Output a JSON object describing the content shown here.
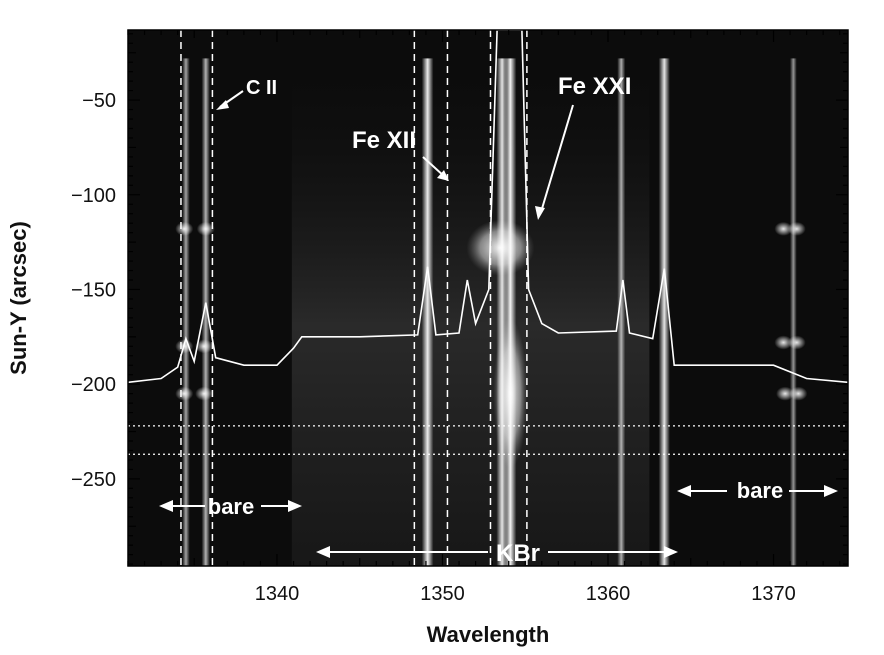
{
  "chart_data": {
    "type": "heatmap",
    "xlabel": "Wavelength",
    "ylabel": "Sun-Y (arcsec)",
    "xlim": [
      1331,
      1374.5
    ],
    "ylim": [
      -296,
      -13
    ],
    "x_ticks": [
      1340,
      1350,
      1360,
      1370
    ],
    "y_ticks": [
      -50,
      -100,
      -150,
      -200,
      -250
    ],
    "colormap": "grayscale",
    "dashed_vlines": [
      1334.2,
      1336.1,
      1348.3,
      1350.3,
      1352.9,
      1355.1
    ],
    "dotted_hlines": [
      -222,
      -237
    ],
    "emission_lines": [
      {
        "wavelength": 1334.5,
        "strength": 0.45
      },
      {
        "wavelength": 1335.7,
        "strength": 0.55
      },
      {
        "wavelength": 1349.1,
        "strength": 0.95
      },
      {
        "wavelength": 1353.6,
        "strength": 0.9
      },
      {
        "wavelength": 1354.1,
        "strength": 1.0
      },
      {
        "wavelength": 1360.8,
        "strength": 0.5
      },
      {
        "wavelength": 1363.4,
        "strength": 0.9
      },
      {
        "wavelength": 1371.2,
        "strength": 0.35
      }
    ],
    "spectrum_profile": [
      {
        "x": 1331.0,
        "y": -199
      },
      {
        "x": 1333.0,
        "y": -197
      },
      {
        "x": 1334.0,
        "y": -191
      },
      {
        "x": 1334.5,
        "y": -176
      },
      {
        "x": 1335.0,
        "y": -188
      },
      {
        "x": 1335.7,
        "y": -157
      },
      {
        "x": 1336.3,
        "y": -186
      },
      {
        "x": 1338.0,
        "y": -190
      },
      {
        "x": 1340.0,
        "y": -190
      },
      {
        "x": 1341.0,
        "y": -181
      },
      {
        "x": 1341.5,
        "y": -175
      },
      {
        "x": 1345.0,
        "y": -175
      },
      {
        "x": 1348.5,
        "y": -174
      },
      {
        "x": 1349.1,
        "y": -138
      },
      {
        "x": 1349.6,
        "y": -174
      },
      {
        "x": 1351.0,
        "y": -173
      },
      {
        "x": 1351.5,
        "y": -145
      },
      {
        "x": 1352.0,
        "y": -168
      },
      {
        "x": 1352.8,
        "y": -150
      },
      {
        "x": 1353.3,
        "y": -13
      },
      {
        "x": 1354.8,
        "y": -13
      },
      {
        "x": 1355.2,
        "y": -150
      },
      {
        "x": 1356.0,
        "y": -168
      },
      {
        "x": 1357.0,
        "y": -173
      },
      {
        "x": 1360.5,
        "y": -172
      },
      {
        "x": 1360.9,
        "y": -145
      },
      {
        "x": 1361.3,
        "y": -173
      },
      {
        "x": 1362.7,
        "y": -176
      },
      {
        "x": 1363.4,
        "y": -139
      },
      {
        "x": 1364.0,
        "y": -190
      },
      {
        "x": 1368.0,
        "y": -190
      },
      {
        "x": 1370.0,
        "y": -190
      },
      {
        "x": 1372.0,
        "y": -197
      },
      {
        "x": 1374.5,
        "y": -199
      }
    ],
    "annotations": {
      "c2": "C II",
      "fe12": "Fe XII",
      "fe21": "Fe XXI",
      "bare_left": "bare",
      "bare_right": "bare",
      "kbr": "KBr"
    }
  }
}
